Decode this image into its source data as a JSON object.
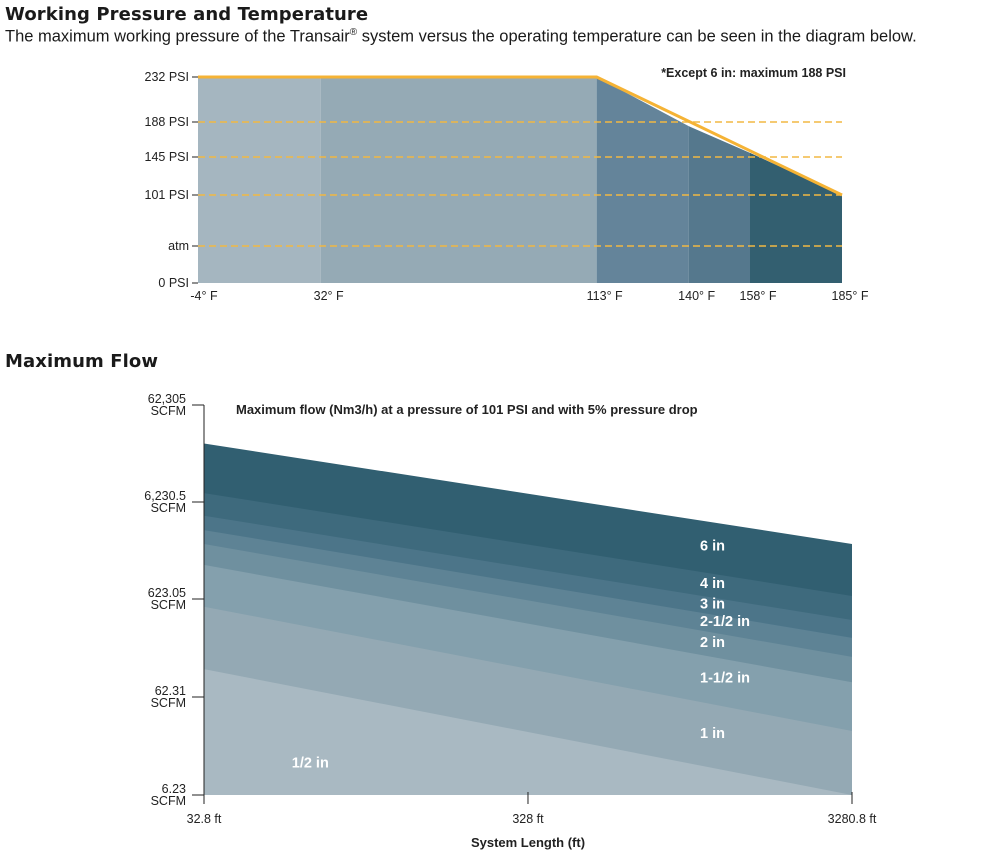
{
  "section1": {
    "title": "Working Pressure and Temperature",
    "description_pre": "The maximum working pressure of the Transair",
    "description_reg": "®",
    "description_post": " system versus the operating temperature can be seen in the diagram below."
  },
  "section2": {
    "title": "Maximum Flow"
  },
  "chart_data": [
    {
      "type": "area",
      "title": "",
      "xlabel": "",
      "ylabel": "",
      "x_ticks": [
        "-4° F",
        "32° F",
        "113° F",
        "140° F",
        "158° F",
        "185° F"
      ],
      "x_values": [
        -4,
        32,
        113,
        140,
        158,
        185
      ],
      "y_ticks": [
        {
          "label": "232 PSI",
          "value": 232
        },
        {
          "label": "188 PSI",
          "value": 188
        },
        {
          "label": "145 PSI",
          "value": 145
        },
        {
          "label": "101 PSI",
          "value": 101
        },
        {
          "label": "atm",
          "value": 14.7
        },
        {
          "label": "0 PSI",
          "value": 0
        }
      ],
      "ylim": [
        0,
        232
      ],
      "max_pressure_curve": [
        {
          "temp": -4,
          "psi": 232
        },
        {
          "temp": 113,
          "psi": 232
        },
        {
          "temp": 185,
          "psi": 101
        }
      ],
      "reference_lines_psi": [
        188,
        145,
        101,
        14.7
      ],
      "note": "*Except 6 in: maximum 188 PSI",
      "colors": {
        "curve": "#f5b335",
        "dashed": "#f2b843",
        "bands": [
          "#a5b6c0",
          "#95aab5",
          "#64849a",
          "#55788d",
          "#335f70"
        ]
      }
    },
    {
      "type": "area",
      "title": "Maximum flow (Nm3/h) at a pressure of 101 PSI and with 5% pressure drop",
      "xlabel": "System Length (ft)",
      "ylabel": "",
      "x_ticks": [
        "32.8 ft",
        "328 ft",
        "3280.8 ft"
      ],
      "x_values": [
        32.8,
        328,
        3280.8
      ],
      "y_ticks": [
        {
          "line1": "62,305",
          "line2": "SCFM",
          "value": 62305
        },
        {
          "line1": "6,230.5",
          "line2": "SCFM",
          "value": 6230.5
        },
        {
          "line1": "623.05",
          "line2": "SCFM",
          "value": 623.05
        },
        {
          "line1": "62.31",
          "line2": "SCFM",
          "value": 62.31
        },
        {
          "line1": "6.23",
          "line2": "SCFM",
          "value": 6.23
        }
      ],
      "x_scale": "log",
      "y_scale": "log",
      "series": [
        {
          "name": "1/2 in",
          "at_32_8ft": 120,
          "at_3280_8ft": 6.23,
          "color": "#a9b9c2"
        },
        {
          "name": "1 in",
          "at_32_8ft": 520,
          "at_3280_8ft": 28,
          "color": "#94a9b4"
        },
        {
          "name": "1-1/2 in",
          "at_32_8ft": 1400,
          "at_3280_8ft": 88,
          "color": "#84a0ad"
        },
        {
          "name": "2 in",
          "at_32_8ft": 2300,
          "at_3280_8ft": 160,
          "color": "#6f909f"
        },
        {
          "name": "2-1/2 in",
          "at_32_8ft": 3200,
          "at_3280_8ft": 250,
          "color": "#5e8395"
        },
        {
          "name": "3 in",
          "at_32_8ft": 4500,
          "at_3280_8ft": 380,
          "color": "#4c7589"
        },
        {
          "name": "4 in",
          "at_32_8ft": 7700,
          "at_3280_8ft": 670,
          "color": "#3e6a7d"
        },
        {
          "name": "6 in",
          "at_32_8ft": 25000,
          "at_3280_8ft": 2300,
          "color": "#315f71"
        }
      ]
    }
  ]
}
